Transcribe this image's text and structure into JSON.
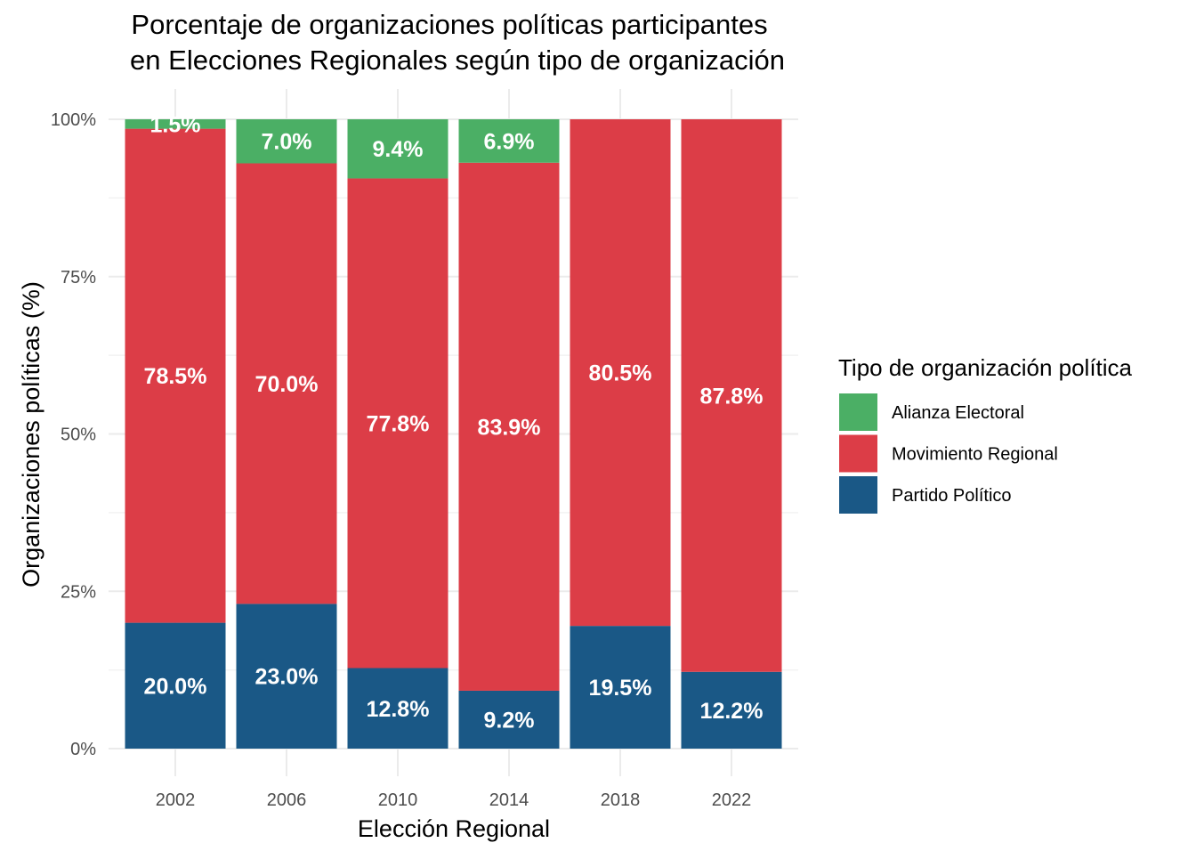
{
  "chart_data": {
    "type": "bar",
    "stacked": true,
    "title_lines": [
      "Porcentaje de organizaciones políticas participantes",
      "en Elecciones Regionales según tipo de organización"
    ],
    "xlabel": "Elección Regional",
    "ylabel": "Organizaciones políticas (%)",
    "ylim": [
      0,
      100
    ],
    "y_ticks": [
      {
        "value": 0,
        "label": "0%"
      },
      {
        "value": 25,
        "label": "25%"
      },
      {
        "value": 50,
        "label": "50%"
      },
      {
        "value": 75,
        "label": "75%"
      },
      {
        "value": 100,
        "label": "100%"
      }
    ],
    "categories": [
      "2002",
      "2006",
      "2010",
      "2014",
      "2018",
      "2022"
    ],
    "series": [
      {
        "name": "Partido Político",
        "color": "#1a5886",
        "values": [
          20.0,
          23.0,
          12.8,
          9.2,
          19.5,
          12.2
        ],
        "labels": [
          "20.0%",
          "23.0%",
          "12.8%",
          "9.2%",
          "19.5%",
          "12.2%"
        ]
      },
      {
        "name": "Movimiento Regional",
        "color": "#dc3d47",
        "values": [
          78.5,
          70.0,
          77.8,
          83.9,
          80.5,
          87.8
        ],
        "labels": [
          "78.5%",
          "70.0%",
          "77.8%",
          "83.9%",
          "80.5%",
          "87.8%"
        ]
      },
      {
        "name": "Alianza Electoral",
        "color": "#4baf65",
        "values": [
          1.5,
          7.0,
          9.4,
          6.9,
          0,
          0
        ],
        "labels": [
          "1.5%",
          "7.0%",
          "9.4%",
          "6.9%",
          "",
          ""
        ]
      }
    ],
    "legend": {
      "title": "Tipo de organización política",
      "position": "right",
      "order": [
        "Alianza Electoral",
        "Movimiento Regional",
        "Partido Político"
      ]
    },
    "grid": true
  }
}
